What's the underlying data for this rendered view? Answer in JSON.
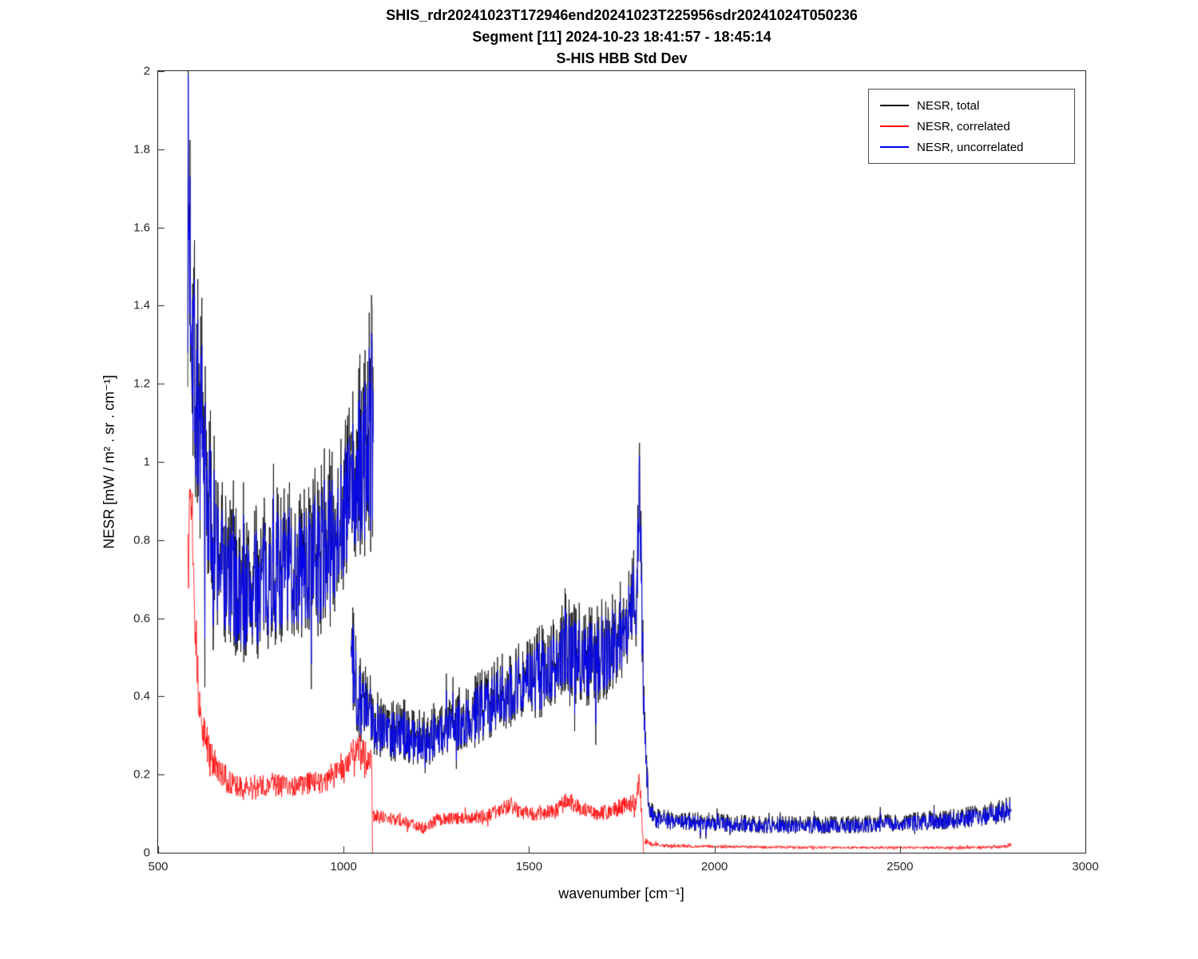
{
  "titles": {
    "line1": "SHIS_rdr20241023T172946end20241023T225956sdr20241024T050236",
    "line2": "Segment [11] 2024-10-23 18:41:57 - 18:45:14",
    "line3": "S-HIS HBB Std Dev"
  },
  "chart_data": {
    "type": "line",
    "title": "S-HIS HBB Std Dev",
    "xlabel": "wavenumber [cm⁻¹]",
    "ylabel": "NESR [mW / m² . sr . cm⁻¹]",
    "xlim": [
      500,
      3000
    ],
    "ylim": [
      0,
      2
    ],
    "xticks": [
      500,
      1000,
      1500,
      2000,
      2500,
      3000
    ],
    "xtick_labels": [
      "500",
      "1000",
      "1500",
      "2000",
      "2500",
      "3000"
    ],
    "yticks": [
      0,
      0.2,
      0.4,
      0.6,
      0.8,
      1,
      1.2,
      1.4,
      1.6,
      1.8,
      2
    ],
    "ytick_labels": [
      "0",
      "0.2",
      "0.4",
      "0.6",
      "0.8",
      "1",
      "1.2",
      "1.4",
      "1.6",
      "1.8",
      "2"
    ],
    "grid": false,
    "legend_position": "top-right",
    "axis_color": "#262626",
    "series": [
      {
        "name": "NESR, total",
        "color": "#000000",
        "seed": 7,
        "segments": [
          [
            [
              580,
              1.68,
              0.5
            ],
            [
              588,
              1.53,
              0.48
            ],
            [
              600,
              1.25,
              0.4
            ],
            [
              615,
              1.05,
              0.35
            ],
            [
              630,
              0.95,
              0.3
            ],
            [
              650,
              0.82,
              0.26
            ],
            [
              680,
              0.73,
              0.22
            ],
            [
              720,
              0.67,
              0.2
            ],
            [
              760,
              0.685,
              0.2
            ],
            [
              800,
              0.725,
              0.2
            ],
            [
              840,
              0.745,
              0.21
            ],
            [
              880,
              0.735,
              0.21
            ],
            [
              920,
              0.755,
              0.21
            ],
            [
              960,
              0.8,
              0.23
            ],
            [
              1000,
              0.89,
              0.24
            ],
            [
              1030,
              0.95,
              0.27
            ],
            [
              1055,
              1.02,
              0.3
            ],
            [
              1075,
              1.1,
              0.34
            ],
            [
              1080,
              1.07,
              0.33
            ]
          ],
          [
            [
              1020,
              0.51,
              0.16
            ],
            [
              1035,
              0.43,
              0.13
            ],
            [
              1060,
              0.37,
              0.11
            ],
            [
              1090,
              0.34,
              0.095
            ],
            [
              1130,
              0.32,
              0.088
            ],
            [
              1170,
              0.31,
              0.08
            ],
            [
              1210,
              0.295,
              0.075
            ],
            [
              1250,
              0.31,
              0.08
            ],
            [
              1290,
              0.33,
              0.08
            ],
            [
              1330,
              0.35,
              0.088
            ],
            [
              1370,
              0.375,
              0.095
            ],
            [
              1410,
              0.4,
              0.1
            ],
            [
              1450,
              0.43,
              0.108
            ],
            [
              1490,
              0.45,
              0.115
            ],
            [
              1530,
              0.465,
              0.12
            ],
            [
              1570,
              0.485,
              0.12
            ],
            [
              1600,
              0.53,
              0.135
            ],
            [
              1630,
              0.51,
              0.135
            ],
            [
              1660,
              0.51,
              0.135
            ],
            [
              1700,
              0.52,
              0.135
            ],
            [
              1740,
              0.56,
              0.135
            ],
            [
              1770,
              0.61,
              0.148
            ],
            [
              1790,
              0.69,
              0.16
            ],
            [
              1798,
              0.91,
              0.19
            ],
            [
              1802,
              0.76,
              0.16
            ],
            [
              1810,
              0.36,
              0.08
            ],
            [
              1822,
              0.125,
              0.034
            ],
            [
              1840,
              0.088,
              0.026
            ],
            [
              1900,
              0.082,
              0.025
            ],
            [
              2000,
              0.078,
              0.024
            ],
            [
              2100,
              0.073,
              0.023
            ],
            [
              2200,
              0.071,
              0.023
            ],
            [
              2300,
              0.071,
              0.023
            ],
            [
              2400,
              0.073,
              0.023
            ],
            [
              2500,
              0.078,
              0.024
            ],
            [
              2600,
              0.083,
              0.026
            ],
            [
              2700,
              0.093,
              0.028
            ],
            [
              2760,
              0.103,
              0.031
            ],
            [
              2800,
              0.111,
              0.033
            ]
          ]
        ]
      },
      {
        "name": "NESR, correlated",
        "color": "#ff0000",
        "seed": 13,
        "segments": [
          [
            [
              580,
              0.8,
              0.12
            ],
            [
              586,
              0.93,
              0.06
            ],
            [
              592,
              0.88,
              0.08
            ],
            [
              600,
              0.6,
              0.08
            ],
            [
              608,
              0.42,
              0.06
            ],
            [
              616,
              0.33,
              0.05
            ],
            [
              628,
              0.29,
              0.05
            ],
            [
              645,
              0.24,
              0.04
            ],
            [
              665,
              0.205,
              0.035
            ],
            [
              690,
              0.18,
              0.032
            ],
            [
              720,
              0.165,
              0.03
            ],
            [
              760,
              0.165,
              0.03
            ],
            [
              800,
              0.175,
              0.03
            ],
            [
              850,
              0.17,
              0.03
            ],
            [
              900,
              0.175,
              0.03
            ],
            [
              950,
              0.185,
              0.032
            ],
            [
              1000,
              0.21,
              0.034
            ],
            [
              1025,
              0.26,
              0.042
            ],
            [
              1045,
              0.26,
              0.042
            ],
            [
              1065,
              0.245,
              0.04
            ],
            [
              1076,
              0.24,
              0.036
            ],
            [
              1077,
              0.12,
              0.0
            ],
            [
              1078,
              0.0,
              0.0
            ]
          ],
          [
            [
              1080,
              0.095,
              0.018
            ],
            [
              1120,
              0.088,
              0.016
            ],
            [
              1160,
              0.082,
              0.015
            ],
            [
              1200,
              0.068,
              0.013
            ],
            [
              1220,
              0.058,
              0.012
            ],
            [
              1240,
              0.08,
              0.015
            ],
            [
              1280,
              0.088,
              0.016
            ],
            [
              1320,
              0.088,
              0.016
            ],
            [
              1360,
              0.092,
              0.017
            ],
            [
              1400,
              0.1,
              0.018
            ],
            [
              1430,
              0.115,
              0.022
            ],
            [
              1450,
              0.12,
              0.024
            ],
            [
              1470,
              0.105,
              0.02
            ],
            [
              1500,
              0.1,
              0.018
            ],
            [
              1540,
              0.1,
              0.018
            ],
            [
              1570,
              0.105,
              0.02
            ],
            [
              1600,
              0.13,
              0.024
            ],
            [
              1620,
              0.125,
              0.022
            ],
            [
              1650,
              0.108,
              0.02
            ],
            [
              1680,
              0.1,
              0.018
            ],
            [
              1710,
              0.105,
              0.02
            ],
            [
              1740,
              0.115,
              0.022
            ],
            [
              1770,
              0.125,
              0.022
            ],
            [
              1790,
              0.13,
              0.024
            ],
            [
              1798,
              0.19,
              0.03
            ],
            [
              1801,
              0.14,
              0.02
            ],
            [
              1806,
              0.05,
              0.01
            ],
            [
              1808,
              0.02,
              0.005
            ],
            [
              1809,
              0.0,
              0.0
            ]
          ],
          [
            [
              1812,
              0.03,
              0.008
            ],
            [
              1830,
              0.022,
              0.006
            ],
            [
              1870,
              0.018,
              0.005
            ],
            [
              1950,
              0.016,
              0.004
            ],
            [
              2050,
              0.015,
              0.004
            ],
            [
              2200,
              0.014,
              0.004
            ],
            [
              2350,
              0.013,
              0.0035
            ],
            [
              2500,
              0.013,
              0.0035
            ],
            [
              2650,
              0.013,
              0.0035
            ],
            [
              2750,
              0.014,
              0.004
            ],
            [
              2790,
              0.016,
              0.005
            ],
            [
              2800,
              0.02,
              0.006
            ]
          ]
        ]
      },
      {
        "name": "NESR, uncorrelated",
        "color": "#0000ff",
        "seed": 7,
        "segments": [
          [
            [
              580,
              1.65,
              0.38
            ],
            [
              588,
              1.5,
              0.36
            ],
            [
              600,
              1.22,
              0.3
            ],
            [
              615,
              1.03,
              0.26
            ],
            [
              630,
              0.93,
              0.22
            ],
            [
              650,
              0.8,
              0.19
            ],
            [
              680,
              0.71,
              0.16
            ],
            [
              720,
              0.655,
              0.15
            ],
            [
              760,
              0.67,
              0.15
            ],
            [
              800,
              0.71,
              0.15
            ],
            [
              840,
              0.73,
              0.16
            ],
            [
              880,
              0.72,
              0.16
            ],
            [
              920,
              0.74,
              0.16
            ],
            [
              960,
              0.78,
              0.17
            ],
            [
              1000,
              0.87,
              0.18
            ],
            [
              1030,
              0.93,
              0.2
            ],
            [
              1055,
              1.0,
              0.23
            ],
            [
              1075,
              1.08,
              0.26
            ],
            [
              1080,
              1.05,
              0.25
            ]
          ],
          [
            [
              1020,
              0.5,
              0.12
            ],
            [
              1035,
              0.42,
              0.1
            ],
            [
              1060,
              0.36,
              0.08
            ],
            [
              1090,
              0.33,
              0.07
            ],
            [
              1130,
              0.31,
              0.065
            ],
            [
              1170,
              0.3,
              0.06
            ],
            [
              1210,
              0.285,
              0.055
            ],
            [
              1250,
              0.3,
              0.06
            ],
            [
              1290,
              0.32,
              0.06
            ],
            [
              1330,
              0.34,
              0.065
            ],
            [
              1370,
              0.365,
              0.07
            ],
            [
              1410,
              0.39,
              0.075
            ],
            [
              1450,
              0.42,
              0.08
            ],
            [
              1490,
              0.44,
              0.085
            ],
            [
              1530,
              0.455,
              0.09
            ],
            [
              1570,
              0.475,
              0.09
            ],
            [
              1600,
              0.52,
              0.1
            ],
            [
              1630,
              0.5,
              0.1
            ],
            [
              1660,
              0.5,
              0.1
            ],
            [
              1700,
              0.51,
              0.1
            ],
            [
              1740,
              0.55,
              0.1
            ],
            [
              1770,
              0.6,
              0.11
            ],
            [
              1790,
              0.68,
              0.12
            ],
            [
              1798,
              0.9,
              0.16
            ],
            [
              1802,
              0.75,
              0.12
            ],
            [
              1810,
              0.35,
              0.06
            ],
            [
              1822,
              0.12,
              0.025
            ],
            [
              1840,
              0.085,
              0.02
            ],
            [
              1900,
              0.08,
              0.019
            ],
            [
              2000,
              0.075,
              0.018
            ],
            [
              2100,
              0.07,
              0.017
            ],
            [
              2200,
              0.068,
              0.017
            ],
            [
              2300,
              0.068,
              0.017
            ],
            [
              2400,
              0.07,
              0.017
            ],
            [
              2500,
              0.075,
              0.018
            ],
            [
              2600,
              0.08,
              0.02
            ],
            [
              2700,
              0.09,
              0.022
            ],
            [
              2760,
              0.1,
              0.024
            ],
            [
              2800,
              0.108,
              0.025
            ]
          ]
        ]
      }
    ]
  }
}
